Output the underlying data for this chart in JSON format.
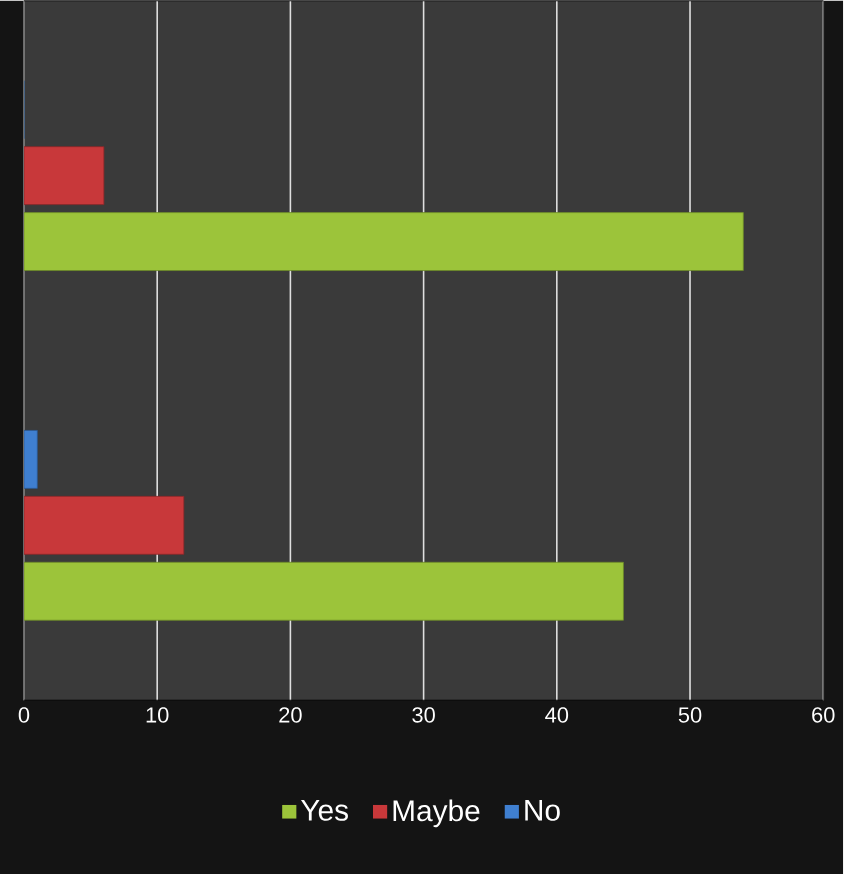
{
  "chart_data": {
    "type": "bar",
    "orientation": "horizontal",
    "categories": [
      null,
      null
    ],
    "series": [
      {
        "name": "Yes",
        "color": "#9cc43a",
        "values": [
          54,
          45
        ]
      },
      {
        "name": "Maybe",
        "color": "#c8383a",
        "values": [
          6,
          12
        ]
      },
      {
        "name": "No",
        "color": "#3f7fd0",
        "values": [
          0,
          1
        ]
      }
    ],
    "xlim": [
      0,
      60
    ],
    "xticks": [
      0,
      10,
      20,
      30,
      40,
      50,
      60
    ],
    "grid": "x",
    "legend": "bottom"
  }
}
